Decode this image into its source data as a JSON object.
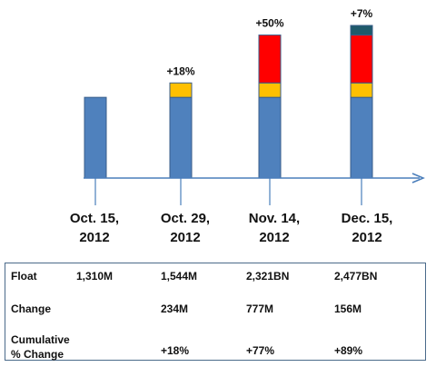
{
  "colors": {
    "base": "#4f81bd",
    "seg2": "#ffc000",
    "seg3": "#ff0000",
    "seg4": "#1f5a6b",
    "axis": "#4a7ebb",
    "table_border": "#4a6a8a"
  },
  "chart_data": {
    "type": "bar",
    "stacked": true,
    "categories": [
      "Oct. 15, 2012",
      "Oct. 29, 2012",
      "Nov. 14, 2012",
      "Dec. 15, 2012"
    ],
    "category_lines": [
      [
        "Oct. 15,",
        "2012"
      ],
      [
        "Oct. 29,",
        "2012"
      ],
      [
        "Nov. 14,",
        "2012"
      ],
      [
        "Dec. 15,",
        "2012"
      ]
    ],
    "series": [
      {
        "values": [
          1310,
          1310,
          1310,
          1310
        ],
        "color": "#4f81bd"
      },
      {
        "values": [
          0,
          234,
          234,
          234
        ],
        "color": "#ffc000"
      },
      {
        "values": [
          0,
          0,
          777,
          777
        ],
        "color": "#ff0000"
      },
      {
        "values": [
          0,
          0,
          0,
          156
        ],
        "color": "#1f5a6b"
      }
    ],
    "annotations": [
      "",
      "+18%",
      "+50%",
      "+7%"
    ],
    "ylim": [
      0,
      2477
    ],
    "grid": false,
    "legend": "none"
  },
  "table": {
    "rows": [
      {
        "label": [
          "Float"
        ],
        "values": [
          "1,310M",
          "1,544M",
          "2,321BN",
          "2,477BN"
        ]
      },
      {
        "label": [
          "Change"
        ],
        "values": [
          "",
          "234M",
          "777M",
          "156M"
        ]
      },
      {
        "label": [
          "Cumulative",
          "% Change"
        ],
        "values": [
          "",
          "+18%",
          "+77%",
          "+89%"
        ]
      }
    ]
  }
}
